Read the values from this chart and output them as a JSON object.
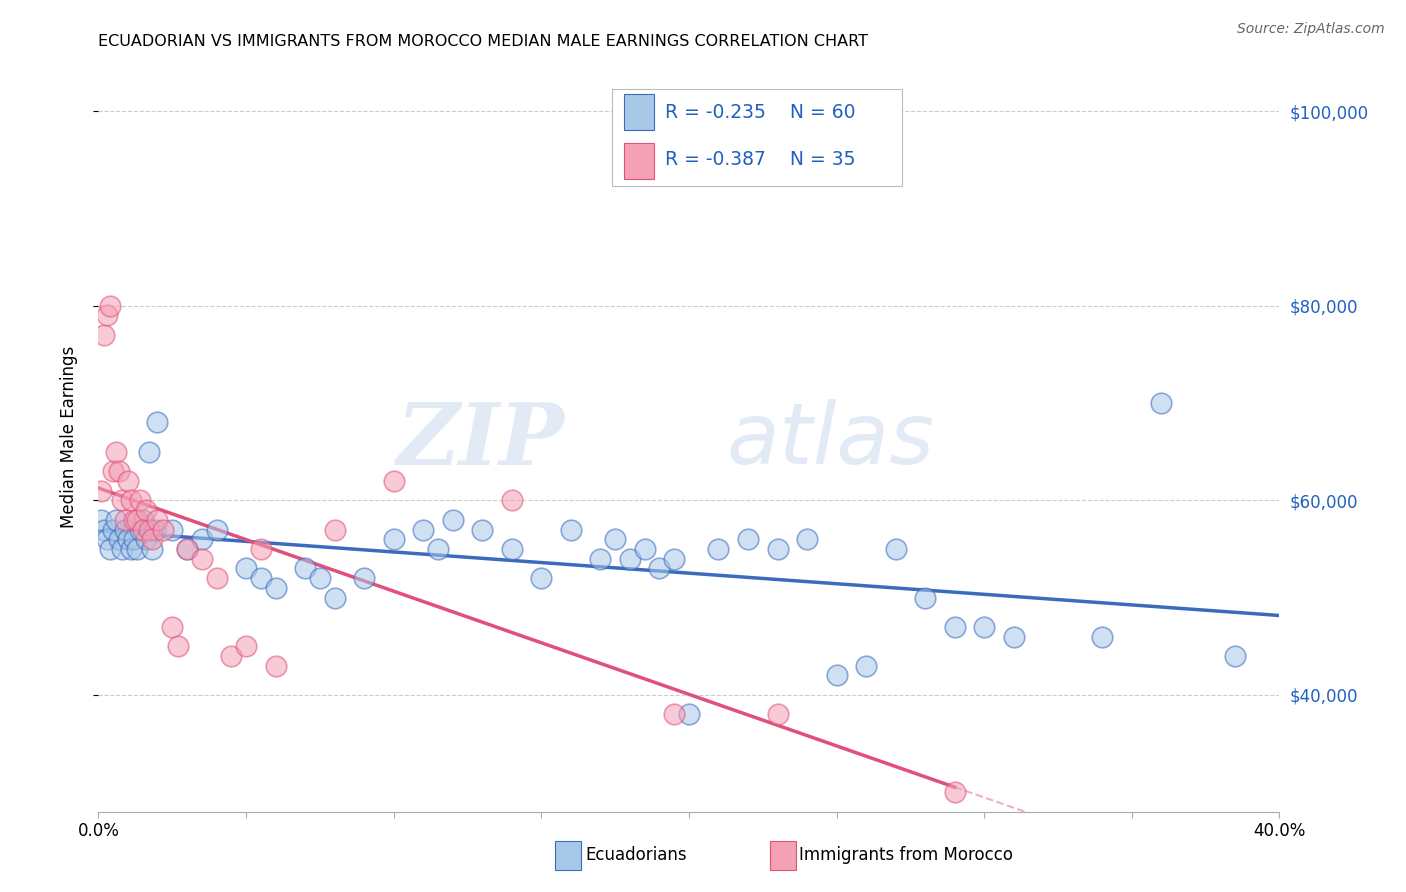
{
  "title": "ECUADORIAN VS IMMIGRANTS FROM MOROCCO MEDIAN MALE EARNINGS CORRELATION CHART",
  "source": "Source: ZipAtlas.com",
  "ylabel": "Median Male Earnings",
  "right_yticks": [
    40000,
    60000,
    80000,
    100000
  ],
  "right_ytick_labels": [
    "$40,000",
    "$60,000",
    "$80,000",
    "$100,000"
  ],
  "watermark_zip": "ZIP",
  "watermark_atlas": "atlas",
  "legend_r1": "R = -0.235",
  "legend_n1": "N = 60",
  "legend_r2": "R = -0.387",
  "legend_n2": "N = 35",
  "color_blue": "#a8c8e8",
  "color_pink": "#f4a0b5",
  "color_blue_line": "#3a6bbf",
  "color_pink_line": "#e0507a",
  "color_legend_text": "#2060c0",
  "color_right_axis": "#2060c0",
  "xlim": [
    0.0,
    0.4
  ],
  "ylim": [
    28000,
    105000
  ],
  "blue_x": [
    0.001,
    0.002,
    0.003,
    0.004,
    0.005,
    0.006,
    0.007,
    0.008,
    0.009,
    0.01,
    0.011,
    0.012,
    0.013,
    0.014,
    0.015,
    0.016,
    0.017,
    0.018,
    0.019,
    0.02,
    0.025,
    0.03,
    0.035,
    0.04,
    0.05,
    0.055,
    0.06,
    0.07,
    0.075,
    0.08,
    0.09,
    0.1,
    0.11,
    0.115,
    0.12,
    0.13,
    0.14,
    0.15,
    0.16,
    0.17,
    0.175,
    0.18,
    0.185,
    0.19,
    0.195,
    0.2,
    0.21,
    0.22,
    0.23,
    0.24,
    0.25,
    0.26,
    0.27,
    0.28,
    0.29,
    0.3,
    0.31,
    0.34,
    0.36,
    0.385
  ],
  "blue_y": [
    58000,
    57000,
    56000,
    55000,
    57000,
    58000,
    56000,
    55000,
    57000,
    56000,
    55000,
    56000,
    55000,
    57000,
    58000,
    56000,
    65000,
    55000,
    57000,
    68000,
    57000,
    55000,
    56000,
    57000,
    53000,
    52000,
    51000,
    53000,
    52000,
    50000,
    52000,
    56000,
    57000,
    55000,
    58000,
    57000,
    55000,
    52000,
    57000,
    54000,
    56000,
    54000,
    55000,
    53000,
    54000,
    38000,
    55000,
    56000,
    55000,
    56000,
    42000,
    43000,
    55000,
    50000,
    47000,
    47000,
    46000,
    46000,
    70000,
    44000
  ],
  "pink_x": [
    0.001,
    0.002,
    0.003,
    0.004,
    0.005,
    0.006,
    0.007,
    0.008,
    0.009,
    0.01,
    0.011,
    0.012,
    0.013,
    0.014,
    0.015,
    0.016,
    0.017,
    0.018,
    0.02,
    0.022,
    0.025,
    0.027,
    0.03,
    0.035,
    0.04,
    0.045,
    0.05,
    0.055,
    0.06,
    0.08,
    0.1,
    0.14,
    0.195,
    0.23,
    0.29
  ],
  "pink_y": [
    61000,
    77000,
    79000,
    80000,
    63000,
    65000,
    63000,
    60000,
    58000,
    62000,
    60000,
    58000,
    58000,
    60000,
    57000,
    59000,
    57000,
    56000,
    58000,
    57000,
    47000,
    45000,
    55000,
    54000,
    52000,
    44000,
    45000,
    55000,
    43000,
    57000,
    62000,
    60000,
    38000,
    38000,
    30000
  ]
}
